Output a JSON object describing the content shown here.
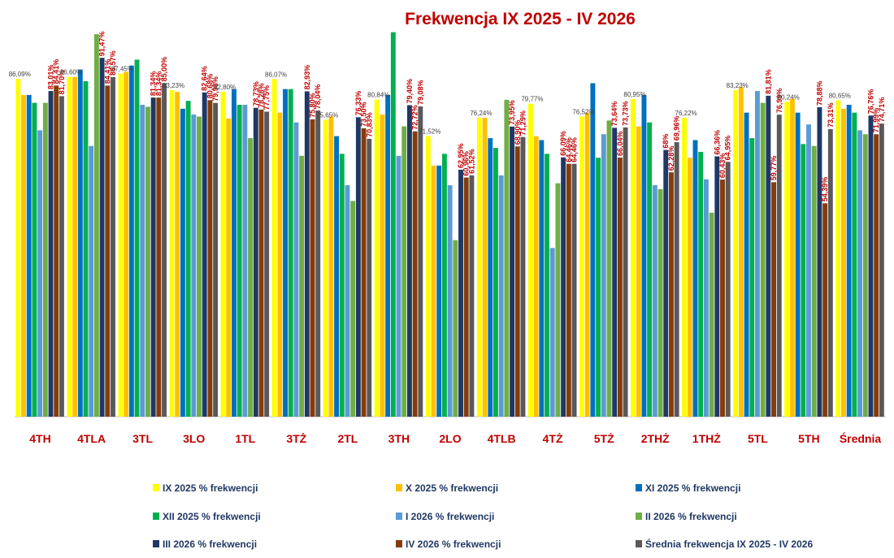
{
  "chart_data": {
    "type": "bar",
    "title": "Frekwencja IX 2025 - IV 2026",
    "xlabel": "",
    "ylabel": "",
    "ylim": [
      0,
      100
    ],
    "grid": false,
    "legend_position": "bottom",
    "categories": [
      "4TH",
      "4TLA",
      "3TL",
      "3LO",
      "1TL",
      "3TŻ",
      "2TL",
      "3TH",
      "2LO",
      "4TLB",
      "4TŻ",
      "5TŻ",
      "2THŻ",
      "1THŻ",
      "5TL",
      "5TH",
      "Średnia"
    ],
    "series": [
      {
        "name": "IX 2025 % frekwencji",
        "color": "#ffff00",
        "values": [
          86.09,
          86.6,
          87.45,
          83.23,
          82.8,
          86.07,
          75.65,
          80.84,
          71.52,
          76.24,
          79.77,
          76.52,
          80.95,
          76.22,
          83.23,
          80.24,
          80.65
        ]
      },
      {
        "name": "X 2025 % frekwencji",
        "color": "#ffc000",
        "values": [
          82.0,
          86.6,
          87.9,
          82.8,
          76.0,
          77.5,
          76.5,
          77.0,
          64.0,
          76.2,
          71.5,
          77.5,
          74.0,
          66.0,
          84.0,
          81.0,
          78.5
        ]
      },
      {
        "name": "XI 2025 % frekwencji",
        "color": "#0070c0",
        "values": [
          82.0,
          88.5,
          89.5,
          78.5,
          83.5,
          83.5,
          71.5,
          82.0,
          64.0,
          71.0,
          70.5,
          85.0,
          82.0,
          70.5,
          77.5,
          77.5,
          79.5
        ]
      },
      {
        "name": "XII 2025 % frekwencji",
        "color": "#00b050",
        "values": [
          80.0,
          85.5,
          91.0,
          80.5,
          79.5,
          83.5,
          67.0,
          98.0,
          67.0,
          68.5,
          67.0,
          66.0,
          75.0,
          67.5,
          71.0,
          69.5,
          77.5
        ]
      },
      {
        "name": "I 2026 % frekwencji",
        "color": "#5b9bd5",
        "values": [
          73.0,
          69.0,
          79.5,
          77.0,
          79.5,
          75.0,
          59.0,
          66.5,
          59.0,
          61.5,
          43.0,
          72.0,
          59.0,
          60.5,
          83.0,
          74.5,
          73.0
        ]
      },
      {
        "name": "II 2026 % frekwencji",
        "color": "#70ad47",
        "values": [
          80.0,
          97.5,
          79.0,
          76.5,
          71.0,
          66.5,
          55.0,
          74.0,
          45.0,
          80.77,
          59.5,
          75.5,
          58.0,
          52.0,
          80.0,
          69.0,
          72.0
        ]
      },
      {
        "name": "III 2026 % frekwencji",
        "color": "#1f3864",
        "values": [
          83.01,
          91.47,
          81.34,
          82.64,
          78.73,
          82.93,
          76.33,
          79.4,
          62.95,
          73.95,
          66.09,
          73.64,
          68.0,
          66.36,
          81.81,
          78.88,
          76.76
        ]
      },
      {
        "name": "IV 2026 % frekwencji",
        "color": "#843c0c",
        "values": [
          84.41,
          84.41,
          81.34,
          80.68,
          78.28,
          75.8,
          73.5,
          72.72,
          60.96,
          68.9,
          64.46,
          66.04,
          62.28,
          60.43,
          59.77,
          54.39,
          71.99
        ]
      },
      {
        "name": "Średnia frekwencja IX 2025 -  IV  2026",
        "color": "#595959",
        "values": [
          81.7,
          86.57,
          85.0,
          79.98,
          77.75,
          78.04,
          70.83,
          79.08,
          61.52,
          71.29,
          64.46,
          73.73,
          69.96,
          64.95,
          76.99,
          73.31,
          74.71
        ]
      }
    ],
    "value_labels": [
      {
        "category": "4TH",
        "labels": [
          {
            "series": 0,
            "text": "86,09%",
            "style": "small"
          },
          {
            "series": 6,
            "text": "83,01%",
            "style": "red"
          },
          {
            "series": 7,
            "text": "84,41%",
            "style": "red"
          },
          {
            "series": 8,
            "text": "81,70%",
            "style": "red"
          }
        ]
      },
      {
        "category": "4TLA",
        "labels": [
          {
            "series": 0,
            "text": "86,60%",
            "style": "small"
          },
          {
            "series": 6,
            "text": "91,47%",
            "style": "red"
          },
          {
            "series": 7,
            "text": "84,41%",
            "style": "red"
          },
          {
            "series": 8,
            "text": "86,57%",
            "style": "red"
          }
        ]
      },
      {
        "category": "3TL",
        "labels": [
          {
            "series": 0,
            "text": "87,45%",
            "style": "small"
          },
          {
            "series": 6,
            "text": "81,34%",
            "style": "red"
          },
          {
            "series": 7,
            "text": "81,34%",
            "style": "red"
          },
          {
            "series": 8,
            "text": "85,00%",
            "style": "red"
          }
        ]
      },
      {
        "category": "3LO",
        "labels": [
          {
            "series": 0,
            "text": "83,23%",
            "style": "small"
          },
          {
            "series": 6,
            "text": "82,64%",
            "style": "red"
          },
          {
            "series": 7,
            "text": "80,68%",
            "style": "red"
          },
          {
            "series": 8,
            "text": "79,98%",
            "style": "red"
          }
        ]
      },
      {
        "category": "1TL",
        "labels": [
          {
            "series": 0,
            "text": "82,80%",
            "style": "small"
          },
          {
            "series": 6,
            "text": "78,73%",
            "style": "red"
          },
          {
            "series": 7,
            "text": "78,28%",
            "style": "red"
          },
          {
            "series": 8,
            "text": "77,75%",
            "style": "red"
          }
        ]
      },
      {
        "category": "3TŻ",
        "labels": [
          {
            "series": 0,
            "text": "86,07%",
            "style": "small"
          },
          {
            "series": 6,
            "text": "82,93%",
            "style": "red"
          },
          {
            "series": 7,
            "text": "75,80%",
            "style": "red"
          },
          {
            "series": 8,
            "text": "78,04%",
            "style": "red"
          }
        ]
      },
      {
        "category": "2TL",
        "labels": [
          {
            "series": 0,
            "text": "75,65%",
            "style": "small"
          },
          {
            "series": 6,
            "text": "76,33%",
            "style": "red"
          },
          {
            "series": 7,
            "text": "73,50%",
            "style": "red"
          },
          {
            "series": 8,
            "text": "70,83%",
            "style": "red"
          }
        ]
      },
      {
        "category": "3TH",
        "labels": [
          {
            "series": 0,
            "text": "80,84%",
            "style": "small"
          },
          {
            "series": 6,
            "text": "79,40%",
            "style": "red"
          },
          {
            "series": 7,
            "text": "72,72%",
            "style": "red"
          },
          {
            "series": 8,
            "text": "79,08%",
            "style": "red"
          }
        ]
      },
      {
        "category": "2LO",
        "labels": [
          {
            "series": 0,
            "text": "71,52%",
            "style": "small"
          },
          {
            "series": 6,
            "text": "62,95%",
            "style": "red"
          },
          {
            "series": 7,
            "text": "60,96%",
            "style": "red"
          },
          {
            "series": 8,
            "text": "61,52%",
            "style": "red"
          }
        ]
      },
      {
        "category": "4TLB",
        "labels": [
          {
            "series": 0,
            "text": "76,24%",
            "style": "small"
          },
          {
            "series": 6,
            "text": "73,95%",
            "style": "red"
          },
          {
            "series": 7,
            "text": "68,90%",
            "style": "red"
          },
          {
            "series": 8,
            "text": "71,29%",
            "style": "red"
          }
        ]
      },
      {
        "category": "4TŻ",
        "labels": [
          {
            "series": 0,
            "text": "79,77%",
            "style": "small"
          },
          {
            "series": 6,
            "text": "66,09%",
            "style": "red"
          },
          {
            "series": 7,
            "text": "64,46%",
            "style": "red"
          },
          {
            "series": 8,
            "text": "64,46%",
            "style": "red"
          }
        ]
      },
      {
        "category": "5TŻ",
        "labels": [
          {
            "series": 0,
            "text": "76,52%",
            "style": "small"
          },
          {
            "series": 6,
            "text": "73,64%",
            "style": "red"
          },
          {
            "series": 7,
            "text": "66,04%",
            "style": "red"
          },
          {
            "series": 8,
            "text": "73,73%",
            "style": "red"
          }
        ]
      },
      {
        "category": "2THŻ",
        "labels": [
          {
            "series": 0,
            "text": "80,95%",
            "style": "small"
          },
          {
            "series": 6,
            "text": "68%",
            "style": "red"
          },
          {
            "series": 7,
            "text": "62,28%",
            "style": "red"
          },
          {
            "series": 8,
            "text": "69,96%",
            "style": "red"
          }
        ]
      },
      {
        "category": "1THŻ",
        "labels": [
          {
            "series": 0,
            "text": "76,22%",
            "style": "small"
          },
          {
            "series": 6,
            "text": "66,36%",
            "style": "red"
          },
          {
            "series": 7,
            "text": "60,43%",
            "style": "red"
          },
          {
            "series": 8,
            "text": "64,95%",
            "style": "red"
          }
        ]
      },
      {
        "category": "5TL",
        "labels": [
          {
            "series": 0,
            "text": "83,23%",
            "style": "small"
          },
          {
            "series": 6,
            "text": "81,81%",
            "style": "red"
          },
          {
            "series": 7,
            "text": "59,77%",
            "style": "red"
          },
          {
            "series": 8,
            "text": "76,99%",
            "style": "red"
          }
        ]
      },
      {
        "category": "5TH",
        "labels": [
          {
            "series": 0,
            "text": "80,24%",
            "style": "small"
          },
          {
            "series": 6,
            "text": "78,88%",
            "style": "red"
          },
          {
            "series": 7,
            "text": "54,39%",
            "style": "red"
          },
          {
            "series": 8,
            "text": "73,31%",
            "style": "red"
          }
        ]
      },
      {
        "category": "Średnia",
        "labels": [
          {
            "series": 0,
            "text": "80,65%",
            "style": "small"
          },
          {
            "series": 6,
            "text": "76,76%",
            "style": "red"
          },
          {
            "series": 7,
            "text": "71,99%",
            "style": "red"
          },
          {
            "series": 8,
            "text": "74,71%",
            "style": "red"
          }
        ]
      }
    ]
  }
}
